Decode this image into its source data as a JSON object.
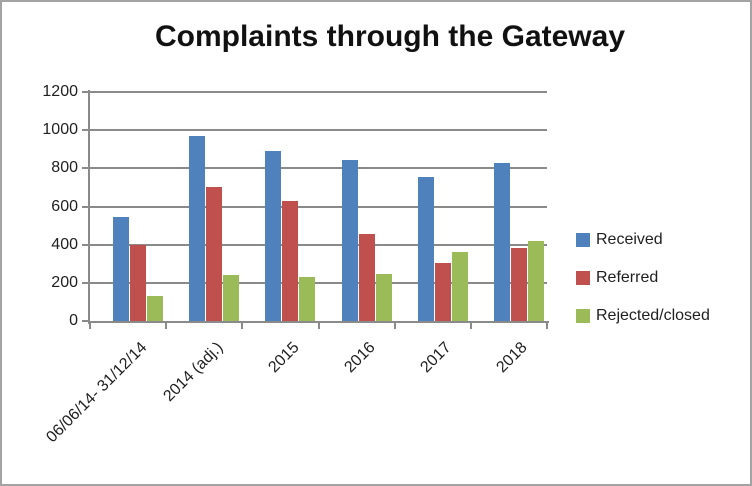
{
  "chart_data": {
    "type": "bar",
    "title": "Complaints through the Gateway",
    "categories": [
      "06/06/14- 31/12/14",
      "2014 (adj.)",
      "2015",
      "2016",
      "2017",
      "2018"
    ],
    "series": [
      {
        "name": "Received",
        "color": "#4F81BD",
        "values": [
          545,
          970,
          890,
          845,
          755,
          830
        ]
      },
      {
        "name": "Referred",
        "color": "#C0504D",
        "values": [
          400,
          700,
          630,
          455,
          305,
          380
        ]
      },
      {
        "name": "Rejected/closed",
        "color": "#9BBB59",
        "values": [
          130,
          240,
          230,
          245,
          360,
          420
        ]
      }
    ],
    "ylim": [
      0,
      1200
    ],
    "yticks": [
      "0",
      "200",
      "400",
      "600",
      "800",
      "1000",
      "1200"
    ],
    "grid": true,
    "legend_position": "right",
    "gridline_color": "#8A8A8A",
    "text_color": "#1F1F1F",
    "background": "#FFFFFF",
    "border_color": "#A3A3A3"
  }
}
